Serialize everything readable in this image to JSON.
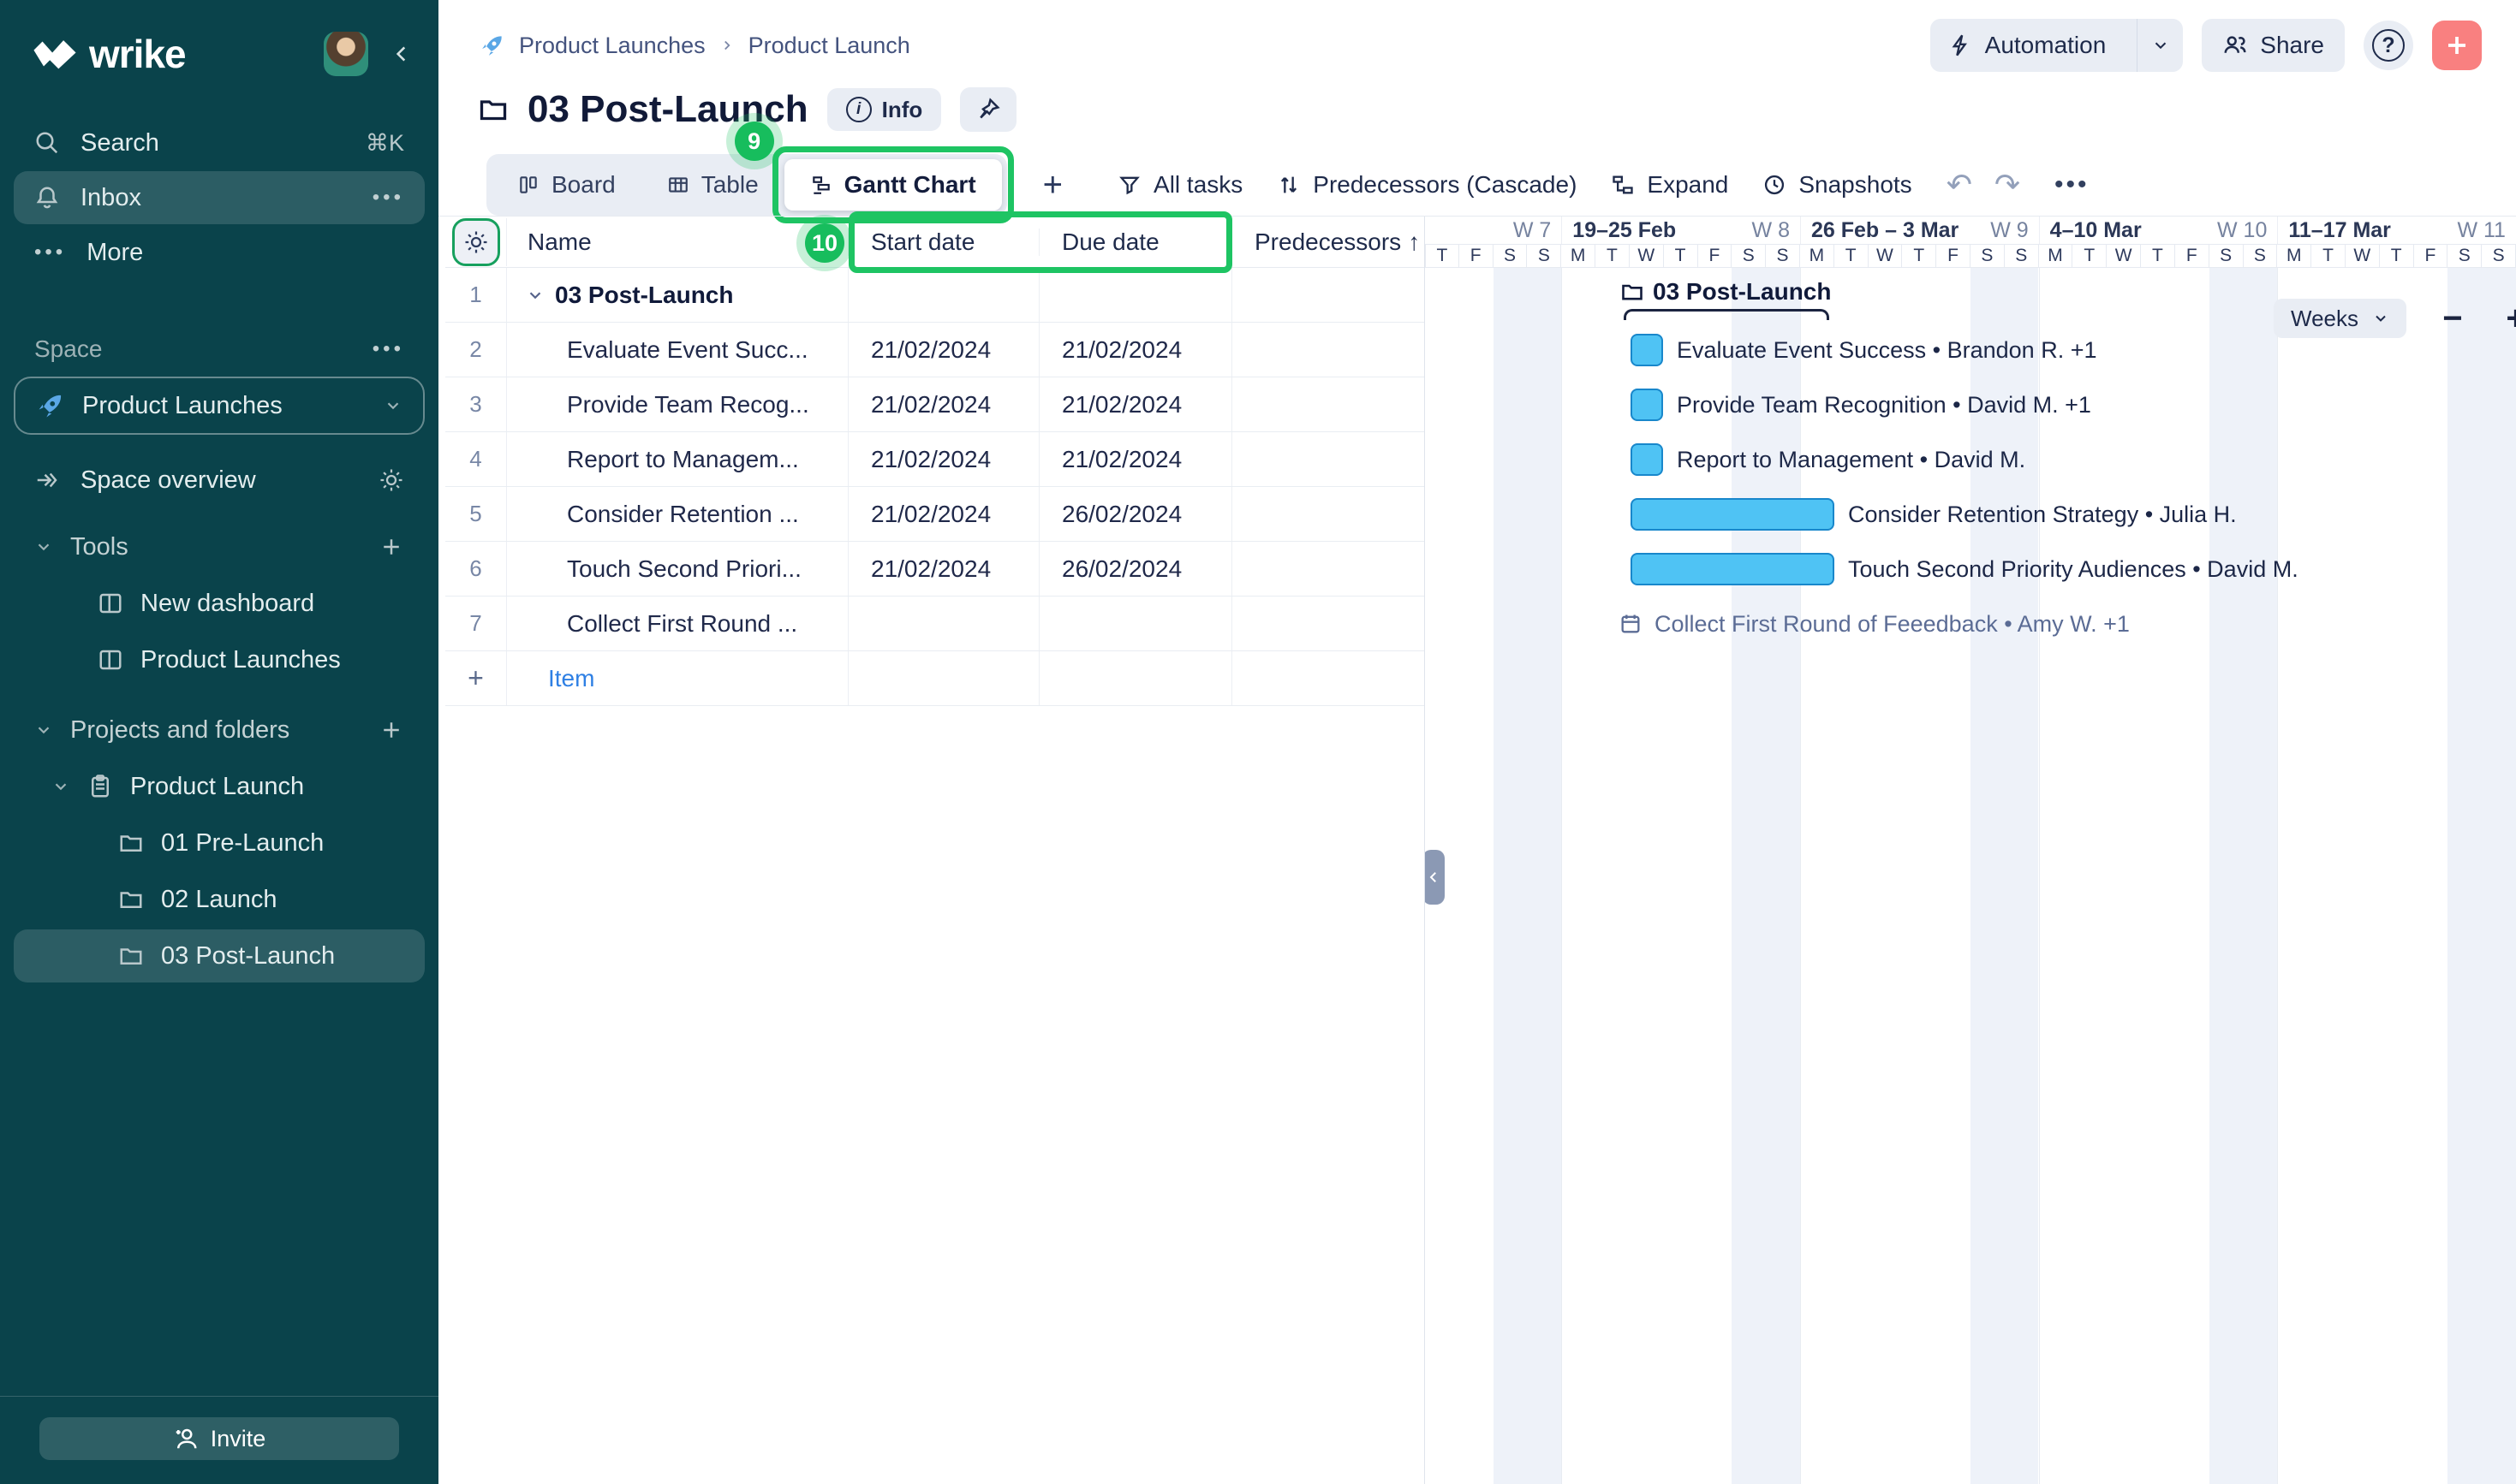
{
  "sidebar": {
    "logo": "wrike",
    "search_label": "Search",
    "search_shortcut": "⌘K",
    "inbox_label": "Inbox",
    "more_label": "More",
    "dots": "•••",
    "space_label": "Space",
    "space_name": "Product Launches",
    "space_overview_label": "Space overview",
    "tools_label": "Tools",
    "tool_items": [
      {
        "label": "New dashboard"
      },
      {
        "label": "Product Launches"
      }
    ],
    "projects_label": "Projects and folders",
    "project_root": "Product Launch",
    "folders": [
      {
        "label": "01 Pre-Launch"
      },
      {
        "label": "02 Launch"
      },
      {
        "label": "03 Post-Launch"
      }
    ],
    "invite_label": "Invite"
  },
  "header": {
    "breadcrumb": {
      "space": "Product Launches",
      "project": "Product Launch"
    },
    "title": "03 Post-Launch",
    "info_label": "Info",
    "automation_label": "Automation",
    "share_label": "Share",
    "help_glyph": "?"
  },
  "toolbar": {
    "views": [
      {
        "label": "Board"
      },
      {
        "label": "Table"
      },
      {
        "label": "Gantt Chart"
      }
    ],
    "add_view": "+",
    "all_tasks_label": "All tasks",
    "predecessors_label": "Predecessors (Cascade)",
    "expand_label": "Expand",
    "snapshots_label": "Snapshots",
    "undo_glyph": "↶",
    "redo_glyph": "↷",
    "more_glyph": "•••"
  },
  "annotations": {
    "gantt_step": "9",
    "dates_step": "10"
  },
  "table": {
    "columns": {
      "name": "Name",
      "start": "Start date",
      "due": "Due date",
      "predecessors": "Predecessors"
    },
    "sort_arrow": "↑",
    "rows": [
      {
        "num": "1",
        "name": "03 Post-Launch",
        "start": "",
        "due": "",
        "pred": ""
      },
      {
        "num": "2",
        "name": "Evaluate Event Succ...",
        "start": "21/02/2024",
        "due": "21/02/2024",
        "pred": ""
      },
      {
        "num": "3",
        "name": "Provide Team Recog...",
        "start": "21/02/2024",
        "due": "21/02/2024",
        "pred": ""
      },
      {
        "num": "4",
        "name": "Report to Managem...",
        "start": "21/02/2024",
        "due": "21/02/2024",
        "pred": ""
      },
      {
        "num": "5",
        "name": "Consider Retention ...",
        "start": "21/02/2024",
        "due": "26/02/2024",
        "pred": ""
      },
      {
        "num": "6",
        "name": "Touch Second Priori...",
        "start": "21/02/2024",
        "due": "26/02/2024",
        "pred": ""
      },
      {
        "num": "7",
        "name": "Collect First Round ...",
        "start": "",
        "due": "",
        "pred": ""
      }
    ],
    "add_plus": "+",
    "add_item_label": "Item"
  },
  "gantt": {
    "group_label": "03 Post-Launch",
    "zoom_label": "Weeks",
    "zoom_out_glyph": "−",
    "zoom_in_glyph": "+",
    "weeks": [
      {
        "range": "",
        "num": "W 7",
        "days": [
          "T",
          "F",
          "S",
          "S"
        ]
      },
      {
        "range": "19–25 Feb",
        "num": "W 8",
        "days": [
          "M",
          "T",
          "W",
          "T",
          "F",
          "S",
          "S"
        ]
      },
      {
        "range": "26 Feb – 3 Mar",
        "num": "W 9",
        "days": [
          "M",
          "T",
          "W",
          "T",
          "F",
          "S",
          "S"
        ]
      },
      {
        "range": "4–10 Mar",
        "num": "W 10",
        "days": [
          "M",
          "T",
          "W",
          "T",
          "F",
          "S",
          "S"
        ]
      },
      {
        "range": "11–17 Mar",
        "num": "W 11",
        "days": [
          "M",
          "T",
          "W",
          "T",
          "F",
          "S",
          "S"
        ]
      }
    ],
    "bars": [
      {
        "label": "Evaluate Event Success • Brandon R. +1",
        "start": "21/02/2024",
        "due": "21/02/2024"
      },
      {
        "label": "Provide Team Recognition • David M. +1",
        "start": "21/02/2024",
        "due": "21/02/2024"
      },
      {
        "label": "Report to Management • David M.",
        "start": "21/02/2024",
        "due": "21/02/2024"
      },
      {
        "label": "Consider Retention Strategy • Julia H.",
        "start": "21/02/2024",
        "due": "26/02/2024"
      },
      {
        "label": "Touch Second Priority Audiences • David M.",
        "start": "21/02/2024",
        "due": "26/02/2024"
      }
    ],
    "unscheduled_label": "Collect First Round of Feeedback • Amy W. +1"
  },
  "colors": {
    "sidebar_bg": "#0a434b",
    "annotation_green": "#1ec463",
    "bar_fill": "#4fc3f4",
    "bar_border": "#1887cb",
    "weekend_band": "#eef2f9",
    "add_link_blue": "#2f80e4",
    "plus_button_red": "#f98080"
  }
}
